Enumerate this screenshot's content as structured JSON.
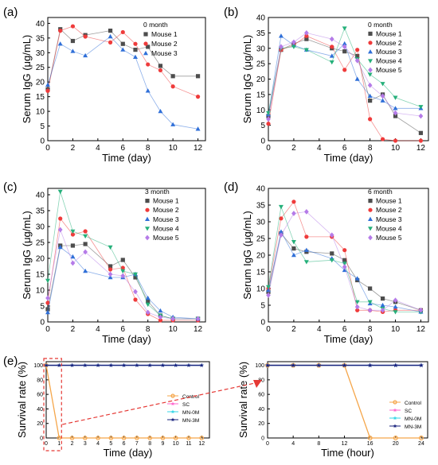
{
  "colors": {
    "mouse1": "#4d4d4d",
    "mouse2": "#ef3b3b",
    "mouse3": "#2f6fd8",
    "mouse4": "#25b07a",
    "mouse5": "#b57be8",
    "control": "#f5a64a",
    "sc": "#ff66cc",
    "mn0m": "#36d6e7",
    "mn3m": "#1a237e",
    "zoom": "#e53935"
  },
  "chart_data": [
    {
      "id": "a",
      "panel_label": "(a)",
      "type": "line",
      "title": "",
      "xlabel": "Time (day)",
      "ylabel": "Serum IgG (μg/mL)",
      "xlim": [
        0,
        12.6
      ],
      "ylim": [
        0,
        42
      ],
      "xticks": [
        0,
        2,
        4,
        6,
        8,
        10,
        12
      ],
      "yticks": [
        0,
        5,
        10,
        15,
        20,
        25,
        30,
        35,
        40
      ],
      "legend_title": "0 month",
      "x": [
        0,
        1,
        2,
        3,
        5,
        6,
        7,
        8,
        9,
        10,
        12
      ],
      "series": [
        {
          "name": "Mouse 1",
          "marker": "square",
          "color_key": "mouse1",
          "values": [
            17.5,
            38.0,
            34.0,
            36.0,
            37.5,
            33.0,
            31.0,
            32.0,
            25.5,
            22.0,
            22.0
          ]
        },
        {
          "name": "Mouse 2",
          "marker": "circle",
          "color_key": "mouse2",
          "values": [
            17.0,
            37.5,
            39.0,
            35.5,
            33.5,
            37.0,
            33.0,
            26.0,
            24.0,
            18.5,
            15.0
          ]
        },
        {
          "name": "Mouse 3",
          "marker": "triangle-up",
          "color_key": "mouse3",
          "values": [
            19.0,
            33.0,
            30.5,
            29.0,
            35.5,
            31.0,
            28.5,
            17.0,
            10.0,
            5.5,
            4.0
          ]
        }
      ]
    },
    {
      "id": "b",
      "panel_label": "(b)",
      "type": "line",
      "title": "",
      "xlabel": "Time (day)",
      "ylabel": "Serum IgG (μg/mL)",
      "xlim": [
        0,
        12.6
      ],
      "ylim": [
        0,
        40
      ],
      "xticks": [
        0,
        2,
        4,
        6,
        8,
        10,
        12
      ],
      "yticks": [
        0,
        5,
        10,
        15,
        20,
        25,
        30,
        35,
        40
      ],
      "legend_title": "0 month",
      "x": [
        0,
        1,
        2,
        3,
        5,
        6,
        7,
        8,
        9,
        10,
        12
      ],
      "series": [
        {
          "name": "Mouse 1",
          "marker": "square",
          "color_key": "mouse1",
          "values": [
            8.0,
            29.5,
            31.5,
            33.0,
            30.0,
            29.0,
            27.5,
            13.0,
            15.0,
            8.0,
            2.5
          ]
        },
        {
          "name": "Mouse 2",
          "marker": "circle",
          "color_key": "mouse2",
          "values": [
            5.5,
            29.5,
            31.0,
            34.0,
            30.5,
            23.0,
            29.5,
            7.0,
            0.5,
            0.0,
            0.0
          ]
        },
        {
          "name": "Mouse 3",
          "marker": "triangle-up",
          "color_key": "mouse3",
          "values": [
            8.5,
            34.0,
            31.0,
            29.5,
            27.5,
            31.5,
            20.0,
            14.5,
            13.0,
            10.5,
            10.5
          ]
        },
        {
          "name": "Mouse 4",
          "marker": "triangle-down",
          "color_key": "mouse4",
          "values": [
            9.0,
            30.0,
            30.5,
            29.5,
            25.5,
            36.5,
            26.5,
            21.5,
            18.5,
            14.0,
            11.0
          ]
        },
        {
          "name": "Mouse 5",
          "marker": "diamond",
          "color_key": "mouse5",
          "values": [
            7.0,
            30.5,
            32.0,
            35.0,
            33.0,
            30.5,
            26.0,
            18.0,
            14.5,
            9.0,
            8.0
          ]
        }
      ]
    },
    {
      "id": "c",
      "panel_label": "(c)",
      "type": "line",
      "title": "",
      "xlabel": "Time (day)",
      "ylabel": "Serum IgG (μg/mL)",
      "xlim": [
        0,
        12.6
      ],
      "ylim": [
        0,
        42
      ],
      "xticks": [
        0,
        2,
        4,
        6,
        8,
        10,
        12
      ],
      "yticks": [
        0,
        5,
        10,
        15,
        20,
        25,
        30,
        35,
        40
      ],
      "legend_title": "3 month",
      "x": [
        0,
        1,
        2,
        3,
        5,
        6,
        7,
        8,
        9,
        10,
        12
      ],
      "series": [
        {
          "name": "Mouse 1",
          "marker": "square",
          "color_key": "mouse1",
          "values": [
            4.0,
            24.0,
            24.0,
            24.5,
            17.5,
            19.5,
            14.0,
            6.5,
            2.0,
            1.0,
            1.0
          ]
        },
        {
          "name": "Mouse 2",
          "marker": "circle",
          "color_key": "mouse2",
          "values": [
            6.0,
            32.5,
            27.5,
            28.5,
            16.5,
            17.0,
            7.0,
            2.5,
            0.5,
            0.5,
            0.5
          ]
        },
        {
          "name": "Mouse 3",
          "marker": "triangle-up",
          "color_key": "mouse3",
          "values": [
            3.0,
            23.5,
            20.5,
            16.0,
            14.0,
            14.0,
            15.0,
            7.5,
            3.5,
            1.5,
            1.0
          ]
        },
        {
          "name": "Mouse 4",
          "marker": "triangle-down",
          "color_key": "mouse4",
          "values": [
            13.0,
            41.0,
            28.5,
            27.0,
            23.5,
            16.0,
            15.0,
            5.5,
            2.0,
            1.0,
            1.0
          ]
        },
        {
          "name": "Mouse 5",
          "marker": "diamond",
          "color_key": "mouse5",
          "values": [
            7.5,
            29.0,
            18.5,
            22.0,
            15.0,
            14.5,
            9.5,
            3.0,
            1.5,
            1.0,
            1.0
          ]
        }
      ]
    },
    {
      "id": "d",
      "panel_label": "(d)",
      "type": "line",
      "title": "",
      "xlabel": "Time (day)",
      "ylabel": "Serum IgG (μg/mL)",
      "xlim": [
        0,
        12.6
      ],
      "ylim": [
        0,
        40
      ],
      "xticks": [
        0,
        2,
        4,
        6,
        8,
        10,
        12
      ],
      "yticks": [
        0,
        5,
        10,
        15,
        20,
        25,
        30,
        35,
        40
      ],
      "legend_title": "6 month",
      "x": [
        0,
        1,
        2,
        3,
        5,
        6,
        7,
        8,
        9,
        10,
        12
      ],
      "series": [
        {
          "name": "Mouse 1",
          "marker": "square",
          "color_key": "mouse1",
          "values": [
            9.0,
            26.5,
            22.0,
            21.0,
            20.5,
            18.5,
            12.5,
            10.0,
            7.0,
            6.0,
            3.5
          ]
        },
        {
          "name": "Mouse 2",
          "marker": "circle",
          "color_key": "mouse2",
          "values": [
            10.0,
            31.0,
            36.0,
            25.5,
            25.5,
            21.5,
            3.5,
            3.5,
            3.0,
            3.5,
            3.5
          ]
        },
        {
          "name": "Mouse 3",
          "marker": "triangle-up",
          "color_key": "mouse3",
          "values": [
            9.5,
            27.0,
            20.0,
            21.5,
            19.0,
            15.5,
            13.0,
            5.5,
            5.0,
            4.5,
            3.0
          ]
        },
        {
          "name": "Mouse 4",
          "marker": "triangle-down",
          "color_key": "mouse4",
          "values": [
            10.5,
            34.5,
            24.0,
            18.0,
            18.5,
            17.5,
            6.0,
            6.0,
            4.0,
            3.0,
            3.0
          ]
        },
        {
          "name": "Mouse 5",
          "marker": "diamond",
          "color_key": "mouse5",
          "values": [
            8.0,
            26.0,
            32.5,
            33.0,
            26.0,
            16.5,
            4.5,
            3.5,
            3.5,
            6.5,
            3.5
          ]
        }
      ]
    },
    {
      "id": "e1",
      "panel_label": "(e)",
      "type": "line",
      "title": "",
      "xlabel": "Time (day)",
      "ylabel": "Survival rate (%)",
      "xlim": [
        0,
        12.6
      ],
      "ylim": [
        0,
        105
      ],
      "xticks": [
        0,
        1,
        2,
        3,
        4,
        5,
        6,
        7,
        8,
        9,
        10,
        11,
        12
      ],
      "yticks": [
        0,
        20,
        40,
        60,
        80,
        100
      ],
      "legend_title": "",
      "x": [
        0,
        1,
        2,
        3,
        4,
        5,
        6,
        7,
        8,
        9,
        10,
        11,
        12
      ],
      "series": [
        {
          "name": "Control",
          "marker": "circle-open",
          "color_key": "control",
          "values": [
            100,
            0,
            0,
            0,
            0,
            0,
            0,
            0,
            0,
            0,
            0,
            0,
            0
          ]
        },
        {
          "name": "SC",
          "marker": "star",
          "color_key": "sc",
          "values": [
            100,
            100,
            100,
            100,
            100,
            100,
            100,
            100,
            100,
            100,
            100,
            100,
            100
          ]
        },
        {
          "name": "MN-0M",
          "marker": "star",
          "color_key": "mn0m",
          "values": [
            100,
            100,
            100,
            100,
            100,
            100,
            100,
            100,
            100,
            100,
            100,
            100,
            100
          ]
        },
        {
          "name": "MN-3M",
          "marker": "star",
          "color_key": "mn3m",
          "values": [
            100,
            100,
            100,
            100,
            100,
            100,
            100,
            100,
            100,
            100,
            100,
            100,
            100
          ]
        }
      ]
    },
    {
      "id": "e2",
      "panel_label": "",
      "type": "line",
      "title": "",
      "xlabel": "Time (hour)",
      "ylabel": "Survival rate (%)",
      "xlim": [
        0,
        25
      ],
      "ylim": [
        0,
        105
      ],
      "xticks": [
        0,
        4,
        8,
        12,
        16,
        20,
        24
      ],
      "yticks": [
        0,
        20,
        40,
        60,
        80,
        100
      ],
      "legend_title": "",
      "x": [
        0,
        4,
        8,
        12,
        16,
        20,
        24
      ],
      "series": [
        {
          "name": "Control",
          "marker": "circle-open",
          "color_key": "control",
          "values": [
            100,
            100,
            100,
            100,
            0,
            0,
            0
          ]
        },
        {
          "name": "SC",
          "marker": "star",
          "color_key": "sc",
          "values": [
            100,
            100,
            100,
            100,
            100,
            100,
            100
          ]
        },
        {
          "name": "MN-0M",
          "marker": "star",
          "color_key": "mn0m",
          "values": [
            100,
            100,
            100,
            100,
            100,
            100,
            100
          ]
        },
        {
          "name": "MN-3M",
          "marker": "star",
          "color_key": "mn3m",
          "values": [
            100,
            100,
            100,
            100,
            100,
            100,
            100
          ]
        }
      ]
    }
  ]
}
